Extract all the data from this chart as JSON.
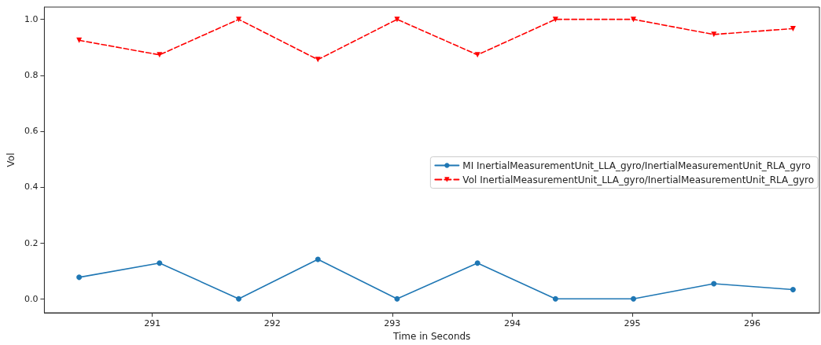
{
  "chart_data": {
    "type": "line",
    "xlabel": "Time in Seconds",
    "ylabel": "Vol",
    "x": [
      290.39,
      291.06,
      291.72,
      292.38,
      293.04,
      293.71,
      294.36,
      295.01,
      295.68,
      296.34
    ],
    "series": [
      {
        "name": "MI InertialMeasurementUnit_LLA_gyro/InertialMeasurementUnit_RLA_gyro",
        "color": "#1f77b4",
        "marker": "circle",
        "line_style": "solid",
        "values": [
          0.077,
          0.128,
          0,
          0.141,
          0,
          0.128,
          0,
          0,
          0.054,
          0.033
        ]
      },
      {
        "name": "Vol InertialMeasurementUnit_LLA_gyro/InertialMeasurementUnit_RLA_gyro",
        "color": "#ff0000",
        "marker": "triangle",
        "line_style": "dashed",
        "values": [
          0.925,
          0.873,
          1.0,
          0.856,
          1.0,
          0.873,
          1.0,
          1.0,
          0.946,
          0.967
        ]
      }
    ],
    "xlim": [
      290.1,
      296.56
    ],
    "xticks": [
      291,
      292,
      293,
      294,
      295,
      296
    ],
    "ylim": [
      -0.05,
      1.044
    ],
    "yticks": [
      {
        "value": 0,
        "label": "0.0"
      },
      {
        "value": 0.2,
        "label": "0.2"
      },
      {
        "value": 0.4,
        "label": "0.4"
      },
      {
        "value": 0.6,
        "label": "0.6"
      },
      {
        "value": 0.8,
        "label": "0.8"
      },
      {
        "value": 1,
        "label": "1.0"
      }
    ],
    "grid": false,
    "legend": "right"
  }
}
